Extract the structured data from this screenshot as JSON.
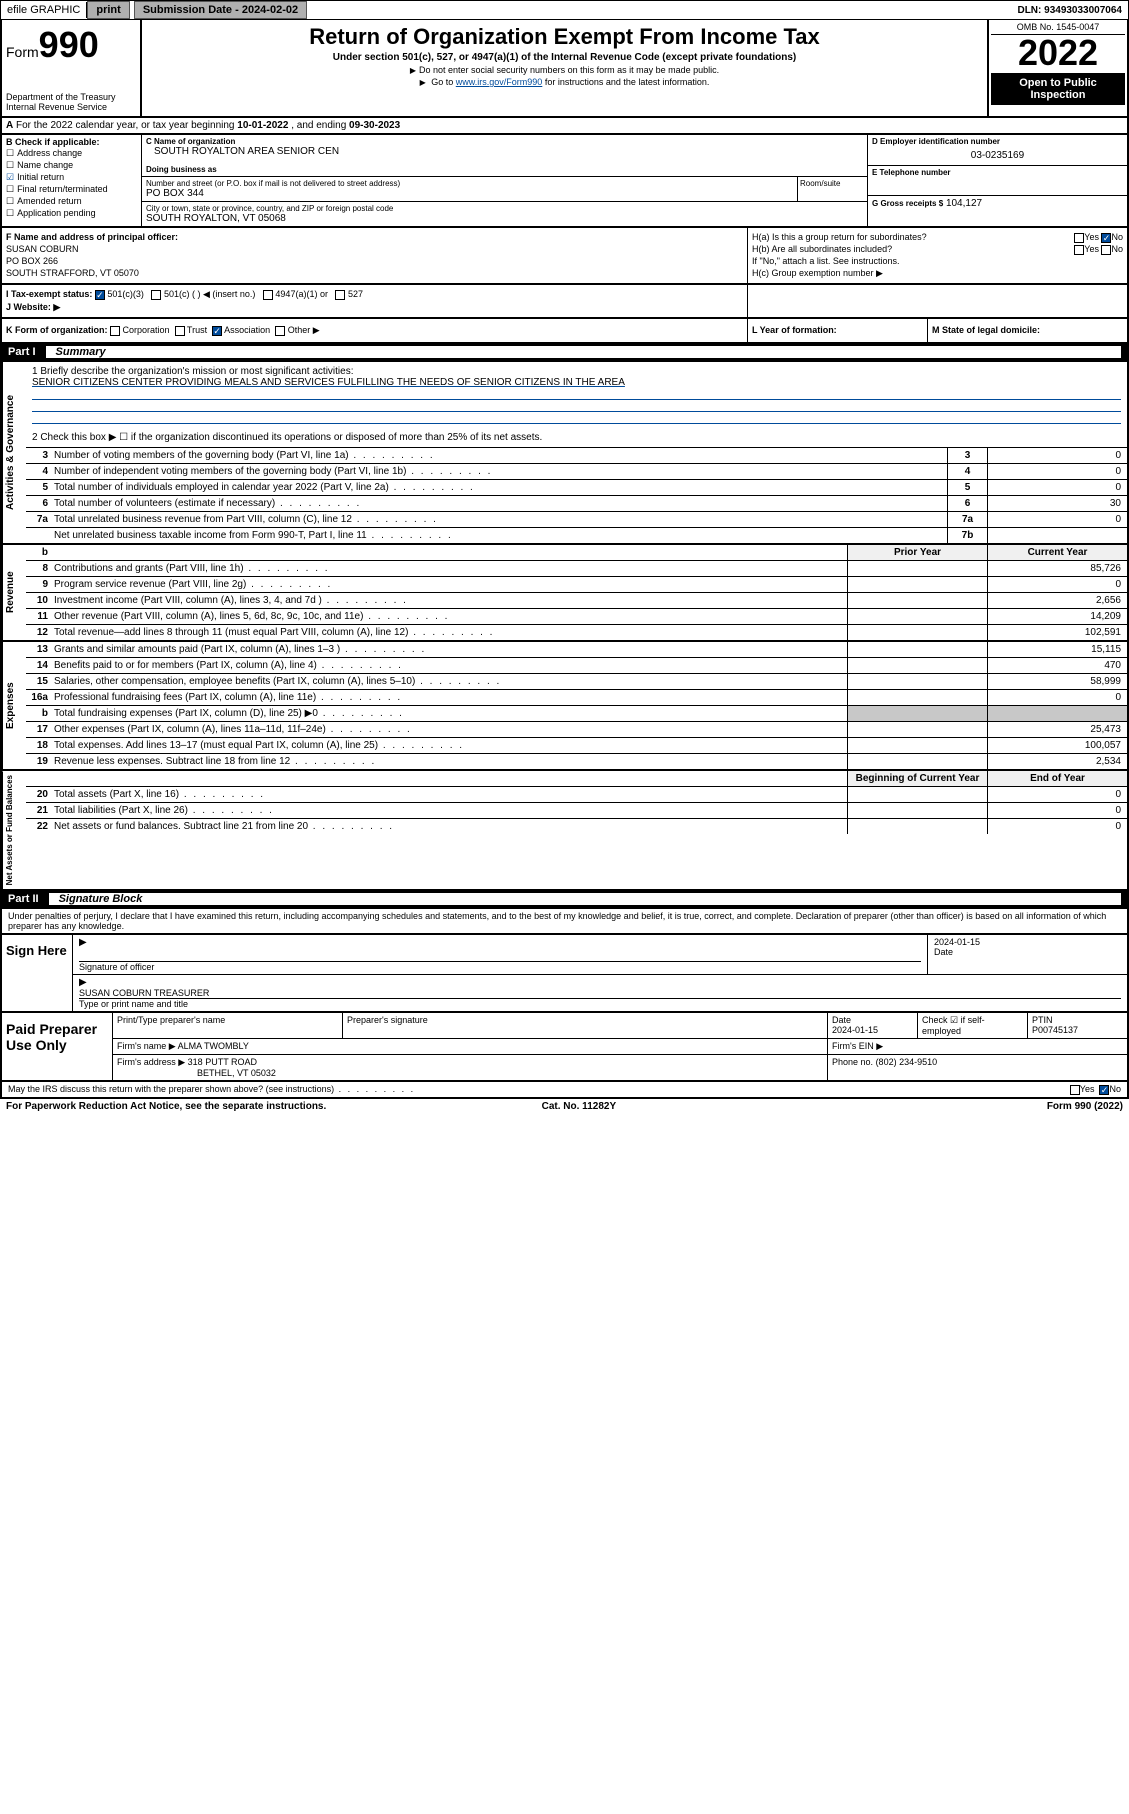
{
  "topbar": {
    "efile_label": "efile GRAPHIC",
    "print_label": "print",
    "submission_label": "Submission Date - 2024-02-02",
    "dln_label": "DLN: 93493033007064"
  },
  "header": {
    "form_label": "Form",
    "form_number": "990",
    "dept": "Department of the Treasury Internal Revenue Service",
    "title": "Return of Organization Exempt From Income Tax",
    "subtitle": "Under section 501(c), 527, or 4947(a)(1) of the Internal Revenue Code (except private foundations)",
    "note1": "Do not enter social security numbers on this form as it may be made public.",
    "note2_pre": "Go to ",
    "note2_link": "www.irs.gov/Form990",
    "note2_post": " for instructions and the latest information.",
    "omb": "OMB No. 1545-0047",
    "year": "2022",
    "open_pub": "Open to Public Inspection"
  },
  "row_a": {
    "label_a": "A",
    "text": "For the 2022 calendar year, or tax year beginning ",
    "begin": "10-01-2022",
    "mid": " , and ending ",
    "end": "09-30-2023"
  },
  "section_b": {
    "hdr": "B Check if applicable:",
    "items": [
      {
        "label": "Address change",
        "checked": false
      },
      {
        "label": "Name change",
        "checked": false
      },
      {
        "label": "Initial return",
        "checked": true
      },
      {
        "label": "Final return/terminated",
        "checked": false
      },
      {
        "label": "Amended return",
        "checked": false
      },
      {
        "label": "Application pending",
        "checked": false
      }
    ]
  },
  "section_c": {
    "name_lbl": "C Name of organization",
    "name": "SOUTH ROYALTON AREA SENIOR CEN",
    "dba_lbl": "Doing business as",
    "dba": "",
    "addr_lbl": "Number and street (or P.O. box if mail is not delivered to street address)",
    "addr": "PO BOX 344",
    "room_lbl": "Room/suite",
    "city_lbl": "City or town, state or province, country, and ZIP or foreign postal code",
    "city": "SOUTH ROYALTON, VT  05068"
  },
  "section_de": {
    "d_lbl": "D Employer identification number",
    "d_val": "03-0235169",
    "e_lbl": "E Telephone number",
    "e_val": "",
    "g_lbl": "G Gross receipts $",
    "g_val": "104,127"
  },
  "section_f": {
    "lbl": "F Name and address of principal officer:",
    "name": "SUSAN COBURN",
    "addr1": "PO BOX 266",
    "addr2": "SOUTH STRAFFORD, VT  05070"
  },
  "section_h": {
    "ha_lbl": "H(a)  Is this a group return for subordinates?",
    "hb_lbl": "H(b)  Are all subordinates included?",
    "hb_note": "If \"No,\" attach a list. See instructions.",
    "hc_lbl": "H(c)  Group exemption number ▶",
    "yes": "Yes",
    "no": "No"
  },
  "section_i": {
    "lbl": "I   Tax-exempt status:",
    "opts": [
      "501(c)(3)",
      "501(c) (   ) ◀ (insert no.)",
      "4947(a)(1) or",
      "527"
    ]
  },
  "section_j": {
    "lbl": "J   Website: ▶"
  },
  "section_k": {
    "k_text": "K Form of organization:",
    "k_opts": [
      "Corporation",
      "Trust",
      "Association",
      "Other ▶"
    ],
    "l_text": "L Year of formation:",
    "m_text": "M State of legal domicile:"
  },
  "part1": {
    "label": "Part I",
    "name": "Summary"
  },
  "mission": {
    "lbl": "1   Briefly describe the organization's mission or most significant activities:",
    "text": "SENIOR CITIZENS CENTER PROVIDING MEALS AND SERVICES FULFILLING THE NEEDS OF SENIOR CITIZENS IN THE AREA",
    "line2": "2   Check this box ▶ ☐  if the organization discontinued its operations or disposed of more than 25% of its net assets."
  },
  "gov_rows": [
    {
      "n": "3",
      "d": "Number of voting members of the governing body (Part VI, line 1a)",
      "c": "3",
      "v": "0"
    },
    {
      "n": "4",
      "d": "Number of independent voting members of the governing body (Part VI, line 1b)",
      "c": "4",
      "v": "0"
    },
    {
      "n": "5",
      "d": "Total number of individuals employed in calendar year 2022 (Part V, line 2a)",
      "c": "5",
      "v": "0"
    },
    {
      "n": "6",
      "d": "Total number of volunteers (estimate if necessary)",
      "c": "6",
      "v": "30"
    },
    {
      "n": "7a",
      "d": "Total unrelated business revenue from Part VIII, column (C), line 12",
      "c": "7a",
      "v": "0"
    },
    {
      "n": "",
      "d": "Net unrelated business taxable income from Form 990-T, Part I, line 11",
      "c": "7b",
      "v": ""
    }
  ],
  "col_hdr": {
    "b": "b",
    "prior": "Prior Year",
    "current": "Current Year"
  },
  "rev_rows": [
    {
      "n": "8",
      "d": "Contributions and grants (Part VIII, line 1h)",
      "p": "",
      "c": "85,726"
    },
    {
      "n": "9",
      "d": "Program service revenue (Part VIII, line 2g)",
      "p": "",
      "c": "0"
    },
    {
      "n": "10",
      "d": "Investment income (Part VIII, column (A), lines 3, 4, and 7d )",
      "p": "",
      "c": "2,656"
    },
    {
      "n": "11",
      "d": "Other revenue (Part VIII, column (A), lines 5, 6d, 8c, 9c, 10c, and 11e)",
      "p": "",
      "c": "14,209"
    },
    {
      "n": "12",
      "d": "Total revenue—add lines 8 through 11 (must equal Part VIII, column (A), line 12)",
      "p": "",
      "c": "102,591"
    }
  ],
  "exp_rows": [
    {
      "n": "13",
      "d": "Grants and similar amounts paid (Part IX, column (A), lines 1–3 )",
      "p": "",
      "c": "15,115"
    },
    {
      "n": "14",
      "d": "Benefits paid to or for members (Part IX, column (A), line 4)",
      "p": "",
      "c": "470"
    },
    {
      "n": "15",
      "d": "Salaries, other compensation, employee benefits (Part IX, column (A), lines 5–10)",
      "p": "",
      "c": "58,999"
    },
    {
      "n": "16a",
      "d": "Professional fundraising fees (Part IX, column (A), line 11e)",
      "p": "",
      "c": "0"
    },
    {
      "n": "b",
      "d": "Total fundraising expenses (Part IX, column (D), line 25) ▶0",
      "p": "shade",
      "c": "shade"
    },
    {
      "n": "17",
      "d": "Other expenses (Part IX, column (A), lines 11a–11d, 11f–24e)",
      "p": "",
      "c": "25,473"
    },
    {
      "n": "18",
      "d": "Total expenses. Add lines 13–17 (must equal Part IX, column (A), line 25)",
      "p": "",
      "c": "100,057"
    },
    {
      "n": "19",
      "d": "Revenue less expenses. Subtract line 18 from line 12",
      "p": "",
      "c": "2,534"
    }
  ],
  "net_hdr": {
    "begin": "Beginning of Current Year",
    "end": "End of Year"
  },
  "net_rows": [
    {
      "n": "20",
      "d": "Total assets (Part X, line 16)",
      "p": "",
      "c": "0"
    },
    {
      "n": "21",
      "d": "Total liabilities (Part X, line 26)",
      "p": "",
      "c": "0"
    },
    {
      "n": "22",
      "d": "Net assets or fund balances. Subtract line 21 from line 20",
      "p": "",
      "c": "0"
    }
  ],
  "vert_labels": {
    "gov": "Activities & Governance",
    "rev": "Revenue",
    "exp": "Expenses",
    "net": "Net Assets or Fund Balances"
  },
  "part2": {
    "label": "Part II",
    "name": "Signature Block"
  },
  "sig_intro": "Under penalties of perjury, I declare that I have examined this return, including accompanying schedules and statements, and to the best of my knowledge and belief, it is true, correct, and complete. Declaration of preparer (other than officer) is based on all information of which preparer has any knowledge.",
  "sign_here": {
    "label": "Sign Here",
    "sig_lbl": "Signature of officer",
    "date_lbl": "Date",
    "date_val": "2024-01-15",
    "name": "SUSAN COBURN TREASURER",
    "name_lbl": "Type or print name and title"
  },
  "prep": {
    "label": "Paid Preparer Use Only",
    "h1": "Print/Type preparer's name",
    "h2": "Preparer's signature",
    "h3": "Date",
    "h3v": "2024-01-15",
    "h4": "Check ☑ if self-employed",
    "h5": "PTIN",
    "h5v": "P00745137",
    "firm_name_lbl": "Firm's name   ▶",
    "firm_name": "ALMA TWOMBLY",
    "firm_ein_lbl": "Firm's EIN ▶",
    "firm_addr_lbl": "Firm's address ▶",
    "firm_addr1": "318 PUTT ROAD",
    "firm_addr2": "BETHEL, VT  05032",
    "phone_lbl": "Phone no.",
    "phone": "(802) 234-9510"
  },
  "footer": {
    "q": "May the IRS discuss this return with the preparer shown above? (see instructions)",
    "yes": "Yes",
    "no": "No"
  },
  "bottom": {
    "left": "For Paperwork Reduction Act Notice, see the separate instructions.",
    "mid": "Cat. No. 11282Y",
    "right": "Form 990 (2022)"
  },
  "colors": {
    "link": "#004b9b",
    "check": "#004b9b"
  }
}
